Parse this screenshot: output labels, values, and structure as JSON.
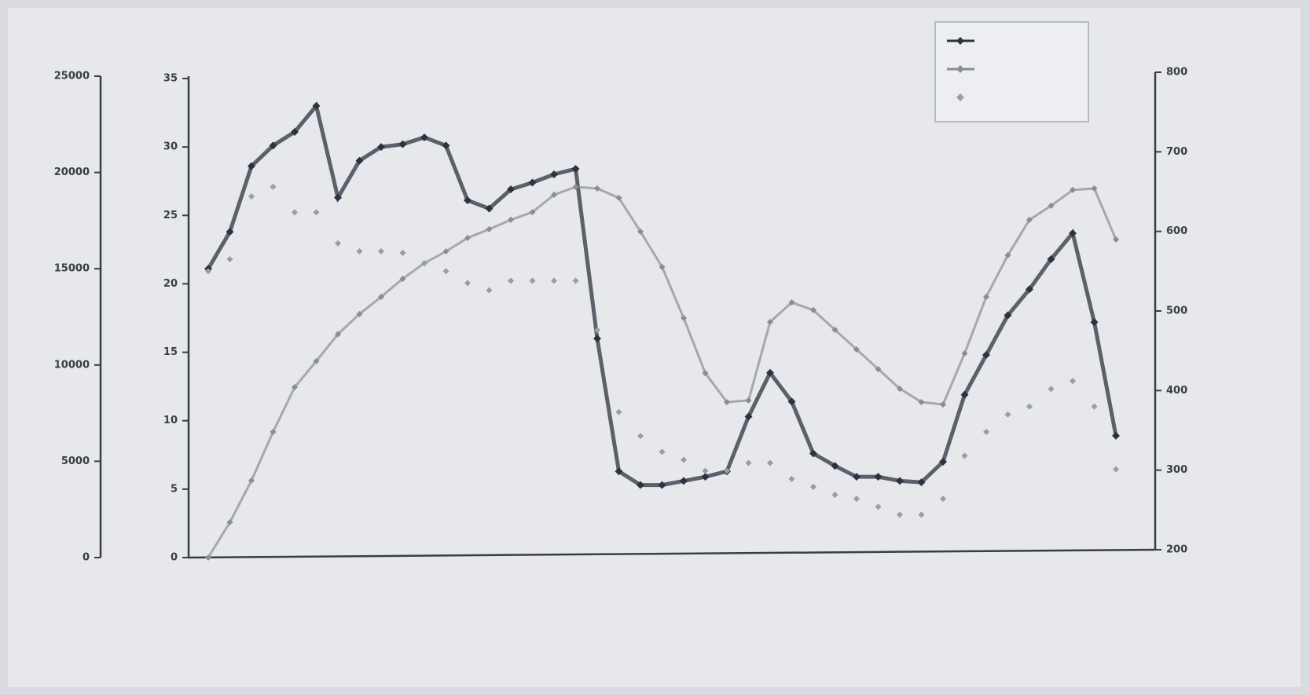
{
  "chart_data": {
    "type": "line",
    "x": [
      0,
      1,
      2,
      3,
      4,
      5,
      6,
      7,
      8,
      9,
      10,
      11,
      12,
      13,
      14,
      15,
      16,
      17,
      18,
      19,
      20,
      21,
      22,
      23,
      24,
      25,
      26,
      27,
      28,
      29,
      30,
      31,
      32,
      33,
      34,
      35,
      36,
      37,
      38,
      39,
      40,
      41,
      42
    ],
    "xlim": [
      0,
      42
    ],
    "ylim": [
      0,
      25000
    ],
    "yticks": [
      0,
      5000,
      10000,
      15000,
      20000,
      25000
    ],
    "y3lim": [
      0,
      35
    ],
    "y3ticks": [
      0,
      5,
      10,
      15,
      20,
      25,
      30,
      35
    ],
    "y2lim": [
      200,
      800
    ],
    "y2ticks": [
      200,
      300,
      400,
      500,
      600,
      700,
      800
    ],
    "series": [
      {
        "color": "#2f3140",
        "axis": "y3",
        "line": true,
        "values": [
          21.1,
          23.8,
          28.6,
          30.1,
          31.1,
          33.0,
          26.3,
          29.0,
          30.0,
          30.2,
          30.7,
          30.1,
          26.1,
          25.5,
          26.9,
          27.4,
          28.0,
          28.4,
          16.0,
          6.3,
          5.3,
          5.3,
          5.6,
          5.9,
          6.3,
          10.3,
          13.5,
          11.4,
          7.6,
          6.7,
          5.9,
          5.9,
          5.6,
          5.5,
          7.0,
          11.9,
          14.8,
          17.7,
          19.6,
          21.8,
          23.7,
          17.2,
          8.9
        ]
      },
      {
        "color": "#8a8c96",
        "axis": "y",
        "line": true,
        "values": [
          0,
          1835,
          4000,
          6525,
          8850,
          10200,
          11600,
          12650,
          13540,
          14480,
          15290,
          15900,
          16600,
          17050,
          17540,
          17940,
          18840,
          19250,
          19170,
          18680,
          16930,
          15090,
          12440,
          9580,
          8075,
          8160,
          12235,
          13250,
          12850,
          11830,
          10810,
          9790,
          8770,
          8075,
          7950,
          10600,
          13540,
          15700,
          17540,
          18270,
          19090,
          19170,
          16520
        ]
      },
      {
        "color": "#9a9ca6",
        "axis": "y2",
        "line": false,
        "values": [
          550,
          565,
          644,
          656,
          624,
          624,
          585,
          575,
          575,
          573,
          560,
          550,
          535,
          526,
          538,
          538,
          538,
          538,
          476,
          373,
          343,
          323,
          313,
          299,
          299,
          309,
          309,
          289,
          279,
          269,
          264,
          254,
          244,
          244,
          264,
          318,
          348,
          370,
          380,
          402,
          412,
          380,
          301
        ]
      }
    ]
  }
}
